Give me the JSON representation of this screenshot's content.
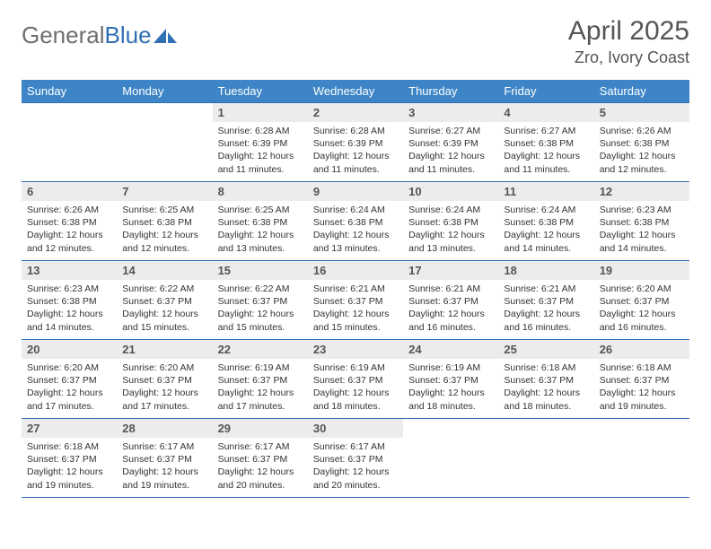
{
  "brand": {
    "part1": "General",
    "part2": "Blue"
  },
  "title": "April 2025",
  "location": "Zro, Ivory Coast",
  "colors": {
    "header_bg": "#3d85c6",
    "header_text": "#ffffff",
    "border": "#2f6fb3",
    "daynum_bg": "#ececec",
    "text": "#333333",
    "muted": "#555555"
  },
  "weekdays": [
    "Sunday",
    "Monday",
    "Tuesday",
    "Wednesday",
    "Thursday",
    "Friday",
    "Saturday"
  ],
  "weeks": [
    [
      {
        "empty": true
      },
      {
        "empty": true
      },
      {
        "n": "1",
        "sunrise": "Sunrise: 6:28 AM",
        "sunset": "Sunset: 6:39 PM",
        "daylight": "Daylight: 12 hours and 11 minutes."
      },
      {
        "n": "2",
        "sunrise": "Sunrise: 6:28 AM",
        "sunset": "Sunset: 6:39 PM",
        "daylight": "Daylight: 12 hours and 11 minutes."
      },
      {
        "n": "3",
        "sunrise": "Sunrise: 6:27 AM",
        "sunset": "Sunset: 6:39 PM",
        "daylight": "Daylight: 12 hours and 11 minutes."
      },
      {
        "n": "4",
        "sunrise": "Sunrise: 6:27 AM",
        "sunset": "Sunset: 6:38 PM",
        "daylight": "Daylight: 12 hours and 11 minutes."
      },
      {
        "n": "5",
        "sunrise": "Sunrise: 6:26 AM",
        "sunset": "Sunset: 6:38 PM",
        "daylight": "Daylight: 12 hours and 12 minutes."
      }
    ],
    [
      {
        "n": "6",
        "sunrise": "Sunrise: 6:26 AM",
        "sunset": "Sunset: 6:38 PM",
        "daylight": "Daylight: 12 hours and 12 minutes."
      },
      {
        "n": "7",
        "sunrise": "Sunrise: 6:25 AM",
        "sunset": "Sunset: 6:38 PM",
        "daylight": "Daylight: 12 hours and 12 minutes."
      },
      {
        "n": "8",
        "sunrise": "Sunrise: 6:25 AM",
        "sunset": "Sunset: 6:38 PM",
        "daylight": "Daylight: 12 hours and 13 minutes."
      },
      {
        "n": "9",
        "sunrise": "Sunrise: 6:24 AM",
        "sunset": "Sunset: 6:38 PM",
        "daylight": "Daylight: 12 hours and 13 minutes."
      },
      {
        "n": "10",
        "sunrise": "Sunrise: 6:24 AM",
        "sunset": "Sunset: 6:38 PM",
        "daylight": "Daylight: 12 hours and 13 minutes."
      },
      {
        "n": "11",
        "sunrise": "Sunrise: 6:24 AM",
        "sunset": "Sunset: 6:38 PM",
        "daylight": "Daylight: 12 hours and 14 minutes."
      },
      {
        "n": "12",
        "sunrise": "Sunrise: 6:23 AM",
        "sunset": "Sunset: 6:38 PM",
        "daylight": "Daylight: 12 hours and 14 minutes."
      }
    ],
    [
      {
        "n": "13",
        "sunrise": "Sunrise: 6:23 AM",
        "sunset": "Sunset: 6:38 PM",
        "daylight": "Daylight: 12 hours and 14 minutes."
      },
      {
        "n": "14",
        "sunrise": "Sunrise: 6:22 AM",
        "sunset": "Sunset: 6:37 PM",
        "daylight": "Daylight: 12 hours and 15 minutes."
      },
      {
        "n": "15",
        "sunrise": "Sunrise: 6:22 AM",
        "sunset": "Sunset: 6:37 PM",
        "daylight": "Daylight: 12 hours and 15 minutes."
      },
      {
        "n": "16",
        "sunrise": "Sunrise: 6:21 AM",
        "sunset": "Sunset: 6:37 PM",
        "daylight": "Daylight: 12 hours and 15 minutes."
      },
      {
        "n": "17",
        "sunrise": "Sunrise: 6:21 AM",
        "sunset": "Sunset: 6:37 PM",
        "daylight": "Daylight: 12 hours and 16 minutes."
      },
      {
        "n": "18",
        "sunrise": "Sunrise: 6:21 AM",
        "sunset": "Sunset: 6:37 PM",
        "daylight": "Daylight: 12 hours and 16 minutes."
      },
      {
        "n": "19",
        "sunrise": "Sunrise: 6:20 AM",
        "sunset": "Sunset: 6:37 PM",
        "daylight": "Daylight: 12 hours and 16 minutes."
      }
    ],
    [
      {
        "n": "20",
        "sunrise": "Sunrise: 6:20 AM",
        "sunset": "Sunset: 6:37 PM",
        "daylight": "Daylight: 12 hours and 17 minutes."
      },
      {
        "n": "21",
        "sunrise": "Sunrise: 6:20 AM",
        "sunset": "Sunset: 6:37 PM",
        "daylight": "Daylight: 12 hours and 17 minutes."
      },
      {
        "n": "22",
        "sunrise": "Sunrise: 6:19 AM",
        "sunset": "Sunset: 6:37 PM",
        "daylight": "Daylight: 12 hours and 17 minutes."
      },
      {
        "n": "23",
        "sunrise": "Sunrise: 6:19 AM",
        "sunset": "Sunset: 6:37 PM",
        "daylight": "Daylight: 12 hours and 18 minutes."
      },
      {
        "n": "24",
        "sunrise": "Sunrise: 6:19 AM",
        "sunset": "Sunset: 6:37 PM",
        "daylight": "Daylight: 12 hours and 18 minutes."
      },
      {
        "n": "25",
        "sunrise": "Sunrise: 6:18 AM",
        "sunset": "Sunset: 6:37 PM",
        "daylight": "Daylight: 12 hours and 18 minutes."
      },
      {
        "n": "26",
        "sunrise": "Sunrise: 6:18 AM",
        "sunset": "Sunset: 6:37 PM",
        "daylight": "Daylight: 12 hours and 19 minutes."
      }
    ],
    [
      {
        "n": "27",
        "sunrise": "Sunrise: 6:18 AM",
        "sunset": "Sunset: 6:37 PM",
        "daylight": "Daylight: 12 hours and 19 minutes."
      },
      {
        "n": "28",
        "sunrise": "Sunrise: 6:17 AM",
        "sunset": "Sunset: 6:37 PM",
        "daylight": "Daylight: 12 hours and 19 minutes."
      },
      {
        "n": "29",
        "sunrise": "Sunrise: 6:17 AM",
        "sunset": "Sunset: 6:37 PM",
        "daylight": "Daylight: 12 hours and 20 minutes."
      },
      {
        "n": "30",
        "sunrise": "Sunrise: 6:17 AM",
        "sunset": "Sunset: 6:37 PM",
        "daylight": "Daylight: 12 hours and 20 minutes."
      },
      {
        "empty": true
      },
      {
        "empty": true
      },
      {
        "empty": true
      }
    ]
  ]
}
